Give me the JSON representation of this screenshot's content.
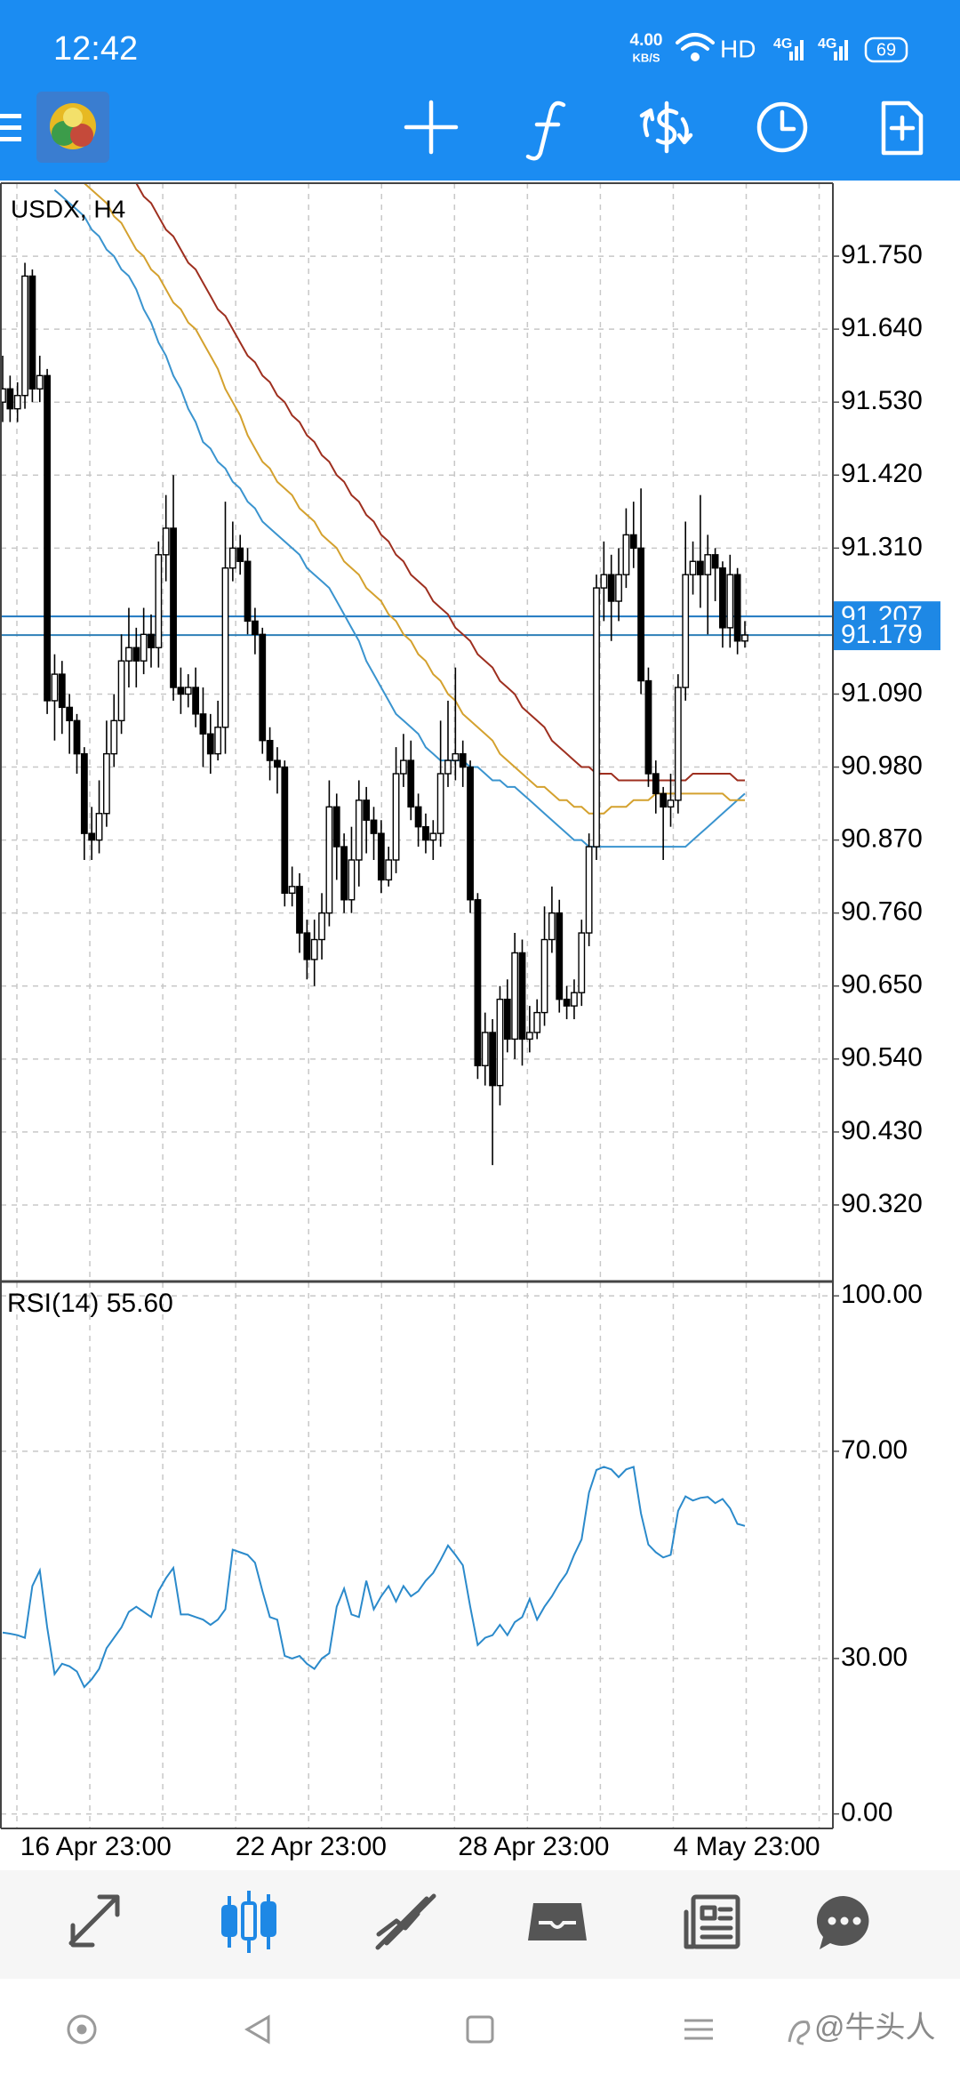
{
  "status_bar": {
    "time": "12:42",
    "net_speed": "4.00",
    "net_unit": "KB/S",
    "hd": "HD",
    "signal_1": "4G",
    "signal_2": "4G",
    "battery": "69"
  },
  "chart_data": {
    "type": "candlestick",
    "title": "USDX, H4",
    "categories": [
      null,
      null,
      "16 Apr 23:00",
      null,
      null,
      null,
      null,
      null,
      null,
      null,
      null,
      null,
      null,
      null,
      null,
      null,
      null,
      null,
      null,
      null,
      null,
      null,
      null,
      null,
      null,
      null,
      null,
      null,
      null,
      null,
      null,
      "22 Apr 23:00",
      null,
      null,
      null,
      null,
      null,
      null,
      null,
      null,
      null,
      null,
      null,
      null,
      null,
      null,
      null,
      null,
      null,
      null,
      null,
      null,
      null,
      null,
      null,
      null,
      null,
      null,
      null,
      null,
      null,
      "28 Apr 23:00",
      null,
      null,
      null,
      null,
      null,
      null,
      null,
      null,
      null,
      null,
      null,
      null,
      null,
      null,
      null,
      null,
      null,
      null,
      null,
      null,
      null,
      null,
      null,
      null,
      null,
      null,
      null,
      null,
      "4 May 23:00",
      null,
      null,
      null,
      null,
      null,
      null,
      null,
      null,
      null,
      null
    ],
    "open": [
      91.53,
      91.55,
      91.52,
      91.54,
      91.72,
      91.55,
      91.57,
      91.08,
      91.12,
      91.07,
      91.05,
      91.0,
      90.88,
      90.87,
      90.91,
      91.0,
      91.05,
      91.14,
      91.16,
      91.14,
      91.18,
      91.16,
      91.3,
      91.34,
      91.1,
      91.09,
      91.1,
      91.06,
      91.03,
      91.0,
      91.04,
      91.28,
      91.31,
      91.29,
      91.2,
      91.18,
      91.02,
      90.99,
      90.98,
      90.79,
      90.8,
      90.73,
      90.69,
      90.72,
      90.76,
      90.92,
      90.86,
      90.78,
      90.84,
      90.93,
      90.9,
      90.88,
      90.81,
      90.84,
      90.97,
      90.99,
      90.92,
      90.89,
      90.87,
      90.88,
      90.97,
      90.99,
      91.0,
      90.98,
      90.78,
      90.53,
      90.58,
      90.5,
      90.63,
      90.57,
      90.7,
      90.57,
      90.58,
      90.61,
      90.72,
      90.76,
      90.63,
      90.62,
      90.64,
      90.73,
      90.86,
      91.25,
      91.27,
      91.23,
      91.27,
      91.33,
      91.31,
      91.11,
      90.97,
      90.94,
      90.92,
      90.93,
      91.1,
      91.27,
      91.29,
      91.27,
      91.3,
      91.28,
      91.19,
      91.27,
      91.17
    ],
    "high": [
      91.6,
      91.57,
      91.56,
      91.74,
      91.73,
      91.6,
      91.58,
      91.15,
      91.14,
      91.09,
      91.06,
      91.01,
      90.92,
      90.96,
      91.05,
      91.09,
      91.18,
      91.22,
      91.19,
      91.22,
      91.21,
      91.32,
      91.39,
      91.42,
      91.13,
      91.12,
      91.13,
      91.1,
      91.06,
      91.08,
      91.38,
      91.35,
      91.33,
      91.31,
      91.22,
      91.19,
      91.04,
      91.01,
      90.99,
      90.83,
      90.82,
      90.75,
      90.75,
      90.79,
      90.96,
      90.94,
      90.88,
      90.89,
      90.96,
      90.95,
      90.92,
      90.9,
      90.86,
      91.01,
      91.03,
      91.02,
      90.94,
      90.91,
      90.9,
      91.05,
      91.08,
      91.13,
      91.02,
      90.99,
      90.79,
      90.61,
      90.6,
      90.65,
      90.66,
      90.73,
      90.72,
      90.62,
      90.63,
      90.77,
      90.8,
      90.78,
      90.65,
      90.66,
      90.75,
      90.88,
      91.27,
      91.32,
      91.3,
      91.31,
      91.37,
      91.38,
      91.4,
      91.13,
      90.99,
      90.95,
      90.97,
      91.12,
      91.35,
      91.32,
      91.39,
      91.33,
      91.31,
      91.29,
      91.3,
      91.28,
      91.2
    ],
    "low": [
      91.5,
      91.5,
      91.5,
      91.52,
      91.53,
      91.53,
      91.06,
      91.02,
      91.03,
      91.0,
      90.97,
      90.84,
      90.84,
      90.85,
      90.89,
      90.98,
      91.03,
      91.1,
      91.1,
      91.12,
      91.13,
      91.13,
      91.26,
      91.08,
      91.06,
      91.07,
      91.04,
      90.98,
      90.97,
      90.99,
      91.0,
      91.26,
      91.27,
      91.18,
      91.15,
      91.0,
      90.96,
      90.94,
      90.77,
      90.77,
      90.7,
      90.66,
      90.65,
      90.69,
      90.74,
      90.81,
      90.76,
      90.76,
      90.8,
      90.85,
      90.84,
      90.79,
      90.8,
      90.82,
      90.95,
      90.9,
      90.86,
      90.85,
      90.84,
      90.86,
      90.95,
      90.96,
      90.95,
      90.76,
      90.51,
      90.5,
      90.38,
      90.47,
      90.55,
      90.54,
      90.53,
      90.55,
      90.57,
      90.59,
      90.7,
      90.61,
      90.6,
      90.6,
      90.62,
      90.71,
      90.84,
      91.2,
      91.17,
      91.2,
      91.25,
      91.28,
      91.09,
      90.95,
      90.91,
      90.84,
      90.89,
      90.91,
      91.08,
      91.24,
      91.22,
      91.18,
      91.23,
      91.16,
      91.16,
      91.15,
      91.16
    ],
    "close": [
      91.55,
      91.52,
      91.54,
      91.72,
      91.55,
      91.57,
      91.08,
      91.12,
      91.07,
      91.05,
      91.0,
      90.88,
      90.87,
      90.91,
      91.0,
      91.05,
      91.14,
      91.16,
      91.14,
      91.18,
      91.16,
      91.3,
      91.34,
      91.1,
      91.09,
      91.1,
      91.06,
      91.03,
      91.0,
      91.04,
      91.28,
      91.31,
      91.29,
      91.2,
      91.18,
      91.02,
      90.99,
      90.98,
      90.79,
      90.8,
      90.73,
      90.69,
      90.72,
      90.76,
      90.92,
      90.86,
      90.78,
      90.84,
      90.93,
      90.9,
      90.88,
      90.81,
      90.84,
      90.97,
      90.99,
      90.92,
      90.89,
      90.87,
      90.88,
      90.97,
      90.99,
      91.0,
      90.98,
      90.78,
      90.53,
      90.58,
      90.5,
      90.63,
      90.57,
      90.7,
      90.57,
      90.58,
      90.61,
      90.72,
      90.76,
      90.63,
      90.62,
      90.64,
      90.73,
      90.86,
      91.25,
      91.27,
      91.23,
      91.27,
      91.33,
      91.31,
      91.11,
      90.97,
      90.94,
      90.92,
      90.93,
      91.1,
      91.27,
      91.29,
      91.27,
      91.3,
      91.28,
      91.19,
      91.27,
      91.17,
      91.179
    ],
    "up_color": "#ffffff",
    "down_color": "#000000",
    "series": [
      {
        "color": "#3a94cf",
        "values": [
          null,
          null,
          null,
          null,
          null,
          null,
          null,
          91.85,
          91.84,
          91.83,
          91.82,
          91.81,
          91.79,
          91.78,
          91.76,
          91.75,
          91.73,
          91.72,
          91.7,
          91.67,
          91.65,
          91.62,
          91.6,
          91.57,
          91.55,
          91.52,
          91.5,
          91.47,
          91.46,
          91.44,
          91.43,
          91.41,
          91.4,
          91.38,
          91.37,
          91.35,
          91.34,
          91.33,
          91.32,
          91.31,
          91.3,
          91.28,
          91.27,
          91.26,
          91.25,
          91.23,
          91.21,
          91.19,
          91.17,
          91.14,
          91.12,
          91.1,
          91.08,
          91.06,
          91.05,
          91.04,
          91.03,
          91.01,
          91.0,
          90.99,
          90.99,
          90.99,
          90.99,
          90.98,
          90.98,
          90.97,
          90.96,
          90.96,
          90.95,
          90.95,
          90.94,
          90.93,
          90.92,
          90.91,
          90.9,
          90.89,
          90.88,
          90.87,
          90.87,
          90.86,
          90.86,
          90.86,
          90.86,
          90.86,
          90.86,
          90.86,
          90.86,
          90.86,
          90.86,
          90.86,
          90.86,
          90.86,
          90.86,
          90.87,
          90.88,
          90.89,
          90.9,
          90.91,
          90.92,
          90.93,
          90.94
        ]
      },
      {
        "color": "#d4a12e",
        "values": [
          null,
          null,
          null,
          null,
          null,
          null,
          null,
          null,
          null,
          null,
          null,
          91.86,
          91.85,
          91.84,
          91.83,
          91.81,
          91.8,
          91.78,
          91.76,
          91.75,
          91.73,
          91.72,
          91.7,
          91.68,
          91.67,
          91.65,
          91.64,
          91.62,
          91.6,
          91.58,
          91.55,
          91.53,
          91.51,
          91.48,
          91.46,
          91.44,
          91.43,
          91.41,
          91.4,
          91.39,
          91.37,
          91.36,
          91.35,
          91.33,
          91.32,
          91.31,
          91.29,
          91.28,
          91.27,
          91.25,
          91.24,
          91.23,
          91.21,
          91.2,
          91.18,
          91.17,
          91.15,
          91.14,
          91.12,
          91.11,
          91.09,
          91.08,
          91.06,
          91.05,
          91.04,
          91.03,
          91.02,
          91.0,
          90.99,
          90.98,
          90.97,
          90.96,
          90.95,
          90.95,
          90.94,
          90.93,
          90.93,
          90.92,
          90.92,
          90.91,
          90.91,
          90.91,
          90.92,
          90.92,
          90.92,
          90.93,
          90.93,
          90.93,
          90.94,
          90.94,
          90.94,
          90.94,
          90.94,
          90.94,
          90.94,
          90.94,
          90.94,
          90.94,
          90.93,
          90.93,
          90.93
        ]
      },
      {
        "color": "#9e2f1f",
        "values": [
          null,
          null,
          null,
          null,
          null,
          null,
          null,
          null,
          null,
          null,
          null,
          null,
          null,
          null,
          null,
          null,
          null,
          null,
          91.86,
          91.84,
          91.83,
          91.81,
          91.79,
          91.78,
          91.76,
          91.74,
          91.73,
          91.71,
          91.69,
          91.67,
          91.66,
          91.64,
          91.62,
          91.6,
          91.59,
          91.57,
          91.56,
          91.54,
          91.53,
          91.51,
          91.5,
          91.48,
          91.47,
          91.45,
          91.44,
          91.42,
          91.41,
          91.39,
          91.38,
          91.36,
          91.35,
          91.33,
          91.32,
          91.3,
          91.29,
          91.27,
          91.26,
          91.25,
          91.23,
          91.22,
          91.21,
          91.19,
          91.18,
          91.17,
          91.15,
          91.14,
          91.13,
          91.11,
          91.1,
          91.09,
          91.07,
          91.06,
          91.05,
          91.04,
          91.02,
          91.01,
          91.0,
          90.99,
          90.98,
          90.98,
          90.97,
          90.97,
          90.97,
          90.96,
          90.96,
          90.96,
          90.96,
          90.96,
          90.96,
          90.96,
          90.96,
          90.96,
          90.96,
          90.97,
          90.97,
          90.97,
          90.97,
          90.97,
          90.97,
          90.96,
          90.96
        ]
      }
    ],
    "price_lines": [
      {
        "value": 91.207,
        "color": "#1f78c1"
      },
      {
        "value": 91.179,
        "color": "#2d7fb8"
      }
    ],
    "ylim": [
      90.206,
      91.86
    ],
    "yticks": [
      {
        "value": 91.75,
        "label": "91.750"
      },
      {
        "value": 91.64,
        "label": "91.640"
      },
      {
        "value": 91.53,
        "label": "91.530"
      },
      {
        "value": 91.42,
        "label": "91.420"
      },
      {
        "value": 91.31,
        "label": "91.310"
      },
      {
        "value": 91.09,
        "label": "91.090"
      },
      {
        "value": 90.98,
        "label": "90.980"
      },
      {
        "value": 90.87,
        "label": "90.870"
      },
      {
        "value": 90.76,
        "label": "90.760"
      },
      {
        "value": 90.65,
        "label": "90.650"
      },
      {
        "value": 90.54,
        "label": "90.540"
      },
      {
        "value": 90.43,
        "label": "90.430"
      },
      {
        "value": 90.32,
        "label": "90.320"
      }
    ],
    "grid": true,
    "indicator": {
      "type": "line",
      "label": "RSI(14) 55.60",
      "color": "#2b8acb",
      "values": [
        35,
        34.8,
        34.5,
        34,
        44,
        47,
        36,
        27,
        29,
        28.5,
        27.5,
        24.5,
        26,
        28,
        32,
        34,
        36,
        39,
        40,
        39,
        38,
        43,
        45.5,
        47.5,
        38.5,
        38.5,
        38,
        37.5,
        36.5,
        37.5,
        39.5,
        51,
        50.5,
        50,
        48.5,
        43,
        38,
        37.5,
        30.5,
        30,
        30.5,
        29,
        28,
        30,
        31,
        40,
        43.5,
        38.5,
        38,
        45,
        39.5,
        42,
        44,
        41,
        44,
        42,
        43,
        45,
        46.5,
        49,
        51.8,
        50,
        48,
        40,
        32.6,
        34,
        34.5,
        36.5,
        34.5,
        37,
        38,
        41.5,
        37.5,
        40,
        42,
        44.5,
        46.5,
        50,
        53,
        62,
        66.4,
        67,
        66.5,
        65,
        66.5,
        67,
        58,
        52,
        50.5,
        49.5,
        50,
        58.5,
        61.3,
        60.5,
        61,
        61.2,
        60,
        60.8,
        59,
        56,
        55.6
      ],
      "ylim": [
        -2.8,
        102.6
      ],
      "yticks": [
        {
          "value": 100,
          "label": "100.00"
        },
        {
          "value": 70,
          "label": "70.00"
        },
        {
          "value": 30,
          "label": "30.00"
        },
        {
          "value": 0,
          "label": "0.00"
        }
      ]
    }
  },
  "watermark": "@牛头人"
}
